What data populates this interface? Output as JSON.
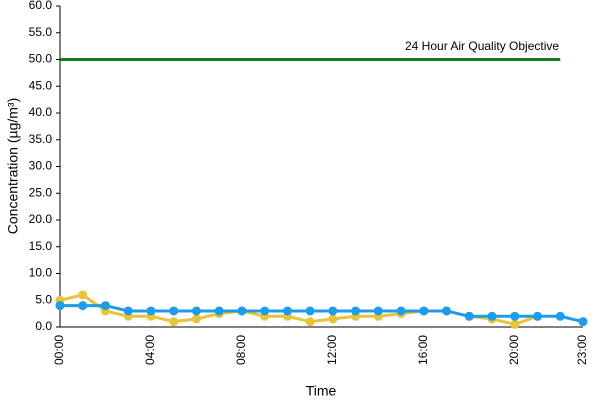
{
  "chart_data": {
    "type": "line",
    "y_label": "Concentration (µg/m³)",
    "x_label": "Time",
    "annotation": "24 Hour Air Quality Objective",
    "categories": [
      "00:00",
      null,
      null,
      null,
      "04:00",
      null,
      null,
      null,
      "08:00",
      null,
      null,
      null,
      "12:00",
      null,
      null,
      null,
      "16:00",
      null,
      null,
      null,
      "20:00",
      null,
      null,
      "23:00"
    ],
    "series": [
      {
        "color": "#1b7a1b",
        "marker": false,
        "values": [
          50,
          50,
          50,
          50,
          50,
          50,
          50,
          50,
          50,
          50,
          50,
          50,
          50,
          50,
          50,
          50,
          50,
          50,
          50,
          50,
          50,
          50,
          50,
          null
        ]
      },
      {
        "color": "#e8c43a",
        "marker": true,
        "values": [
          5,
          6,
          3,
          2,
          2,
          1,
          1.5,
          2.5,
          3,
          2,
          2,
          1,
          1.5,
          2,
          2,
          2.5,
          3,
          3,
          2,
          1.5,
          0.5,
          2,
          null,
          null
        ]
      },
      {
        "color": "#1e9be9",
        "marker": true,
        "values": [
          4,
          4,
          4,
          3,
          3,
          3,
          3,
          3,
          3,
          3,
          3,
          3,
          3,
          3,
          3,
          3,
          3,
          3,
          2,
          2,
          2,
          2,
          2,
          1
        ]
      }
    ],
    "ylim": [
      0,
      60
    ],
    "yticks": [
      {
        "value": 0,
        "label": "0.0"
      },
      {
        "value": 5,
        "label": "5.0"
      },
      {
        "value": 10,
        "label": "10.0"
      },
      {
        "value": 15,
        "label": "15.0"
      },
      {
        "value": 20,
        "label": "20.0"
      },
      {
        "value": 25,
        "label": "25.0"
      },
      {
        "value": 30,
        "label": "30.0"
      },
      {
        "value": 35,
        "label": "35.0"
      },
      {
        "value": 40,
        "label": "40.0"
      },
      {
        "value": 45,
        "label": "45.0"
      },
      {
        "value": 50,
        "label": "50.0"
      },
      {
        "value": 55,
        "label": "55.0"
      },
      {
        "value": 60,
        "label": "60.0"
      }
    ],
    "grid": false
  }
}
